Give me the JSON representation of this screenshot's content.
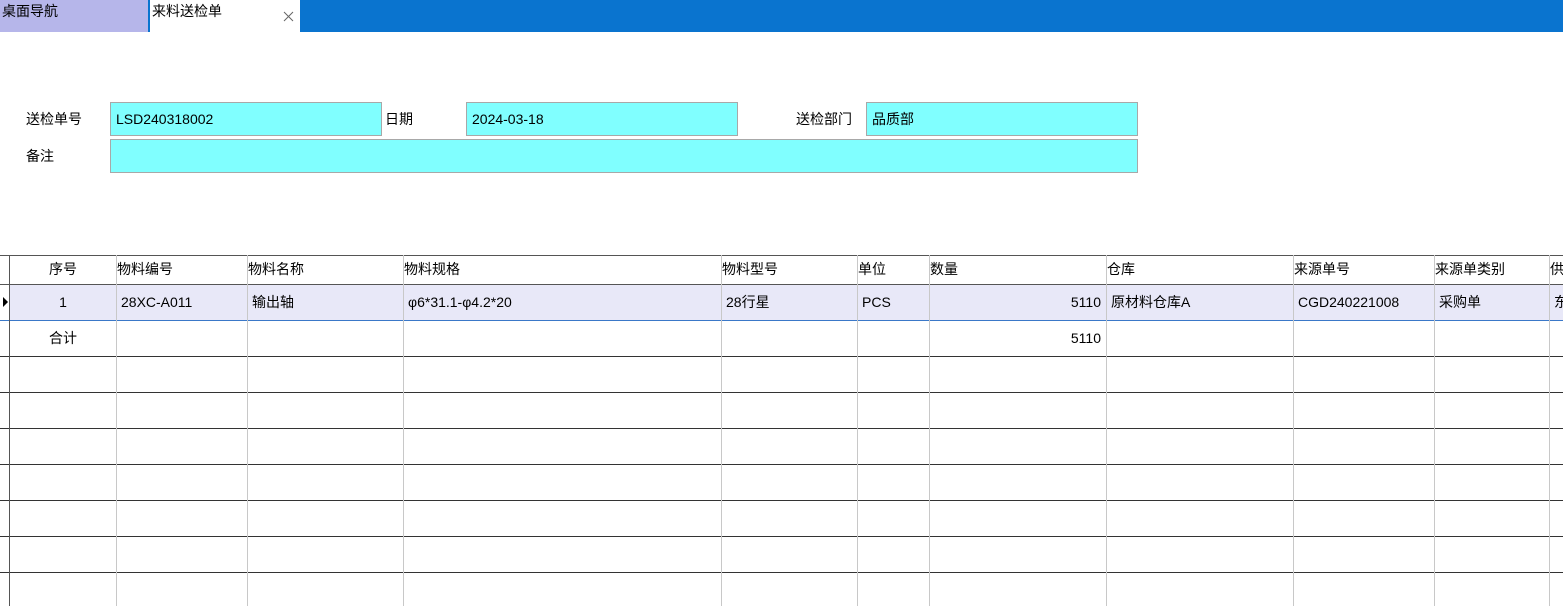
{
  "tabs": [
    "桌面导航",
    "来料送检单"
  ],
  "form": {
    "fields": [
      {
        "label": "送检单号",
        "value": "LSD240318002"
      },
      {
        "label": "日期",
        "value": "2024-03-18"
      },
      {
        "label": "送检部门",
        "value": "品质部"
      },
      {
        "label": "备注"
      }
    ]
  },
  "table": {
    "columns": [
      "序号",
      "物料编号",
      "物料名称",
      "物料规格",
      "物料型号",
      "单位",
      "数量",
      "仓库",
      "来源单号",
      "来源单类别",
      "供"
    ],
    "rows": [
      [
        "1",
        "28XC-A011",
        "输出轴",
        "φ6*31.1-φ4.2*20",
        "28行星",
        "PCS",
        "5110",
        "原材料仓库A",
        "CGD240221008",
        "采购单",
        "东"
      ]
    ],
    "total": {
      "label": "合计",
      "quantity": "5110"
    }
  }
}
